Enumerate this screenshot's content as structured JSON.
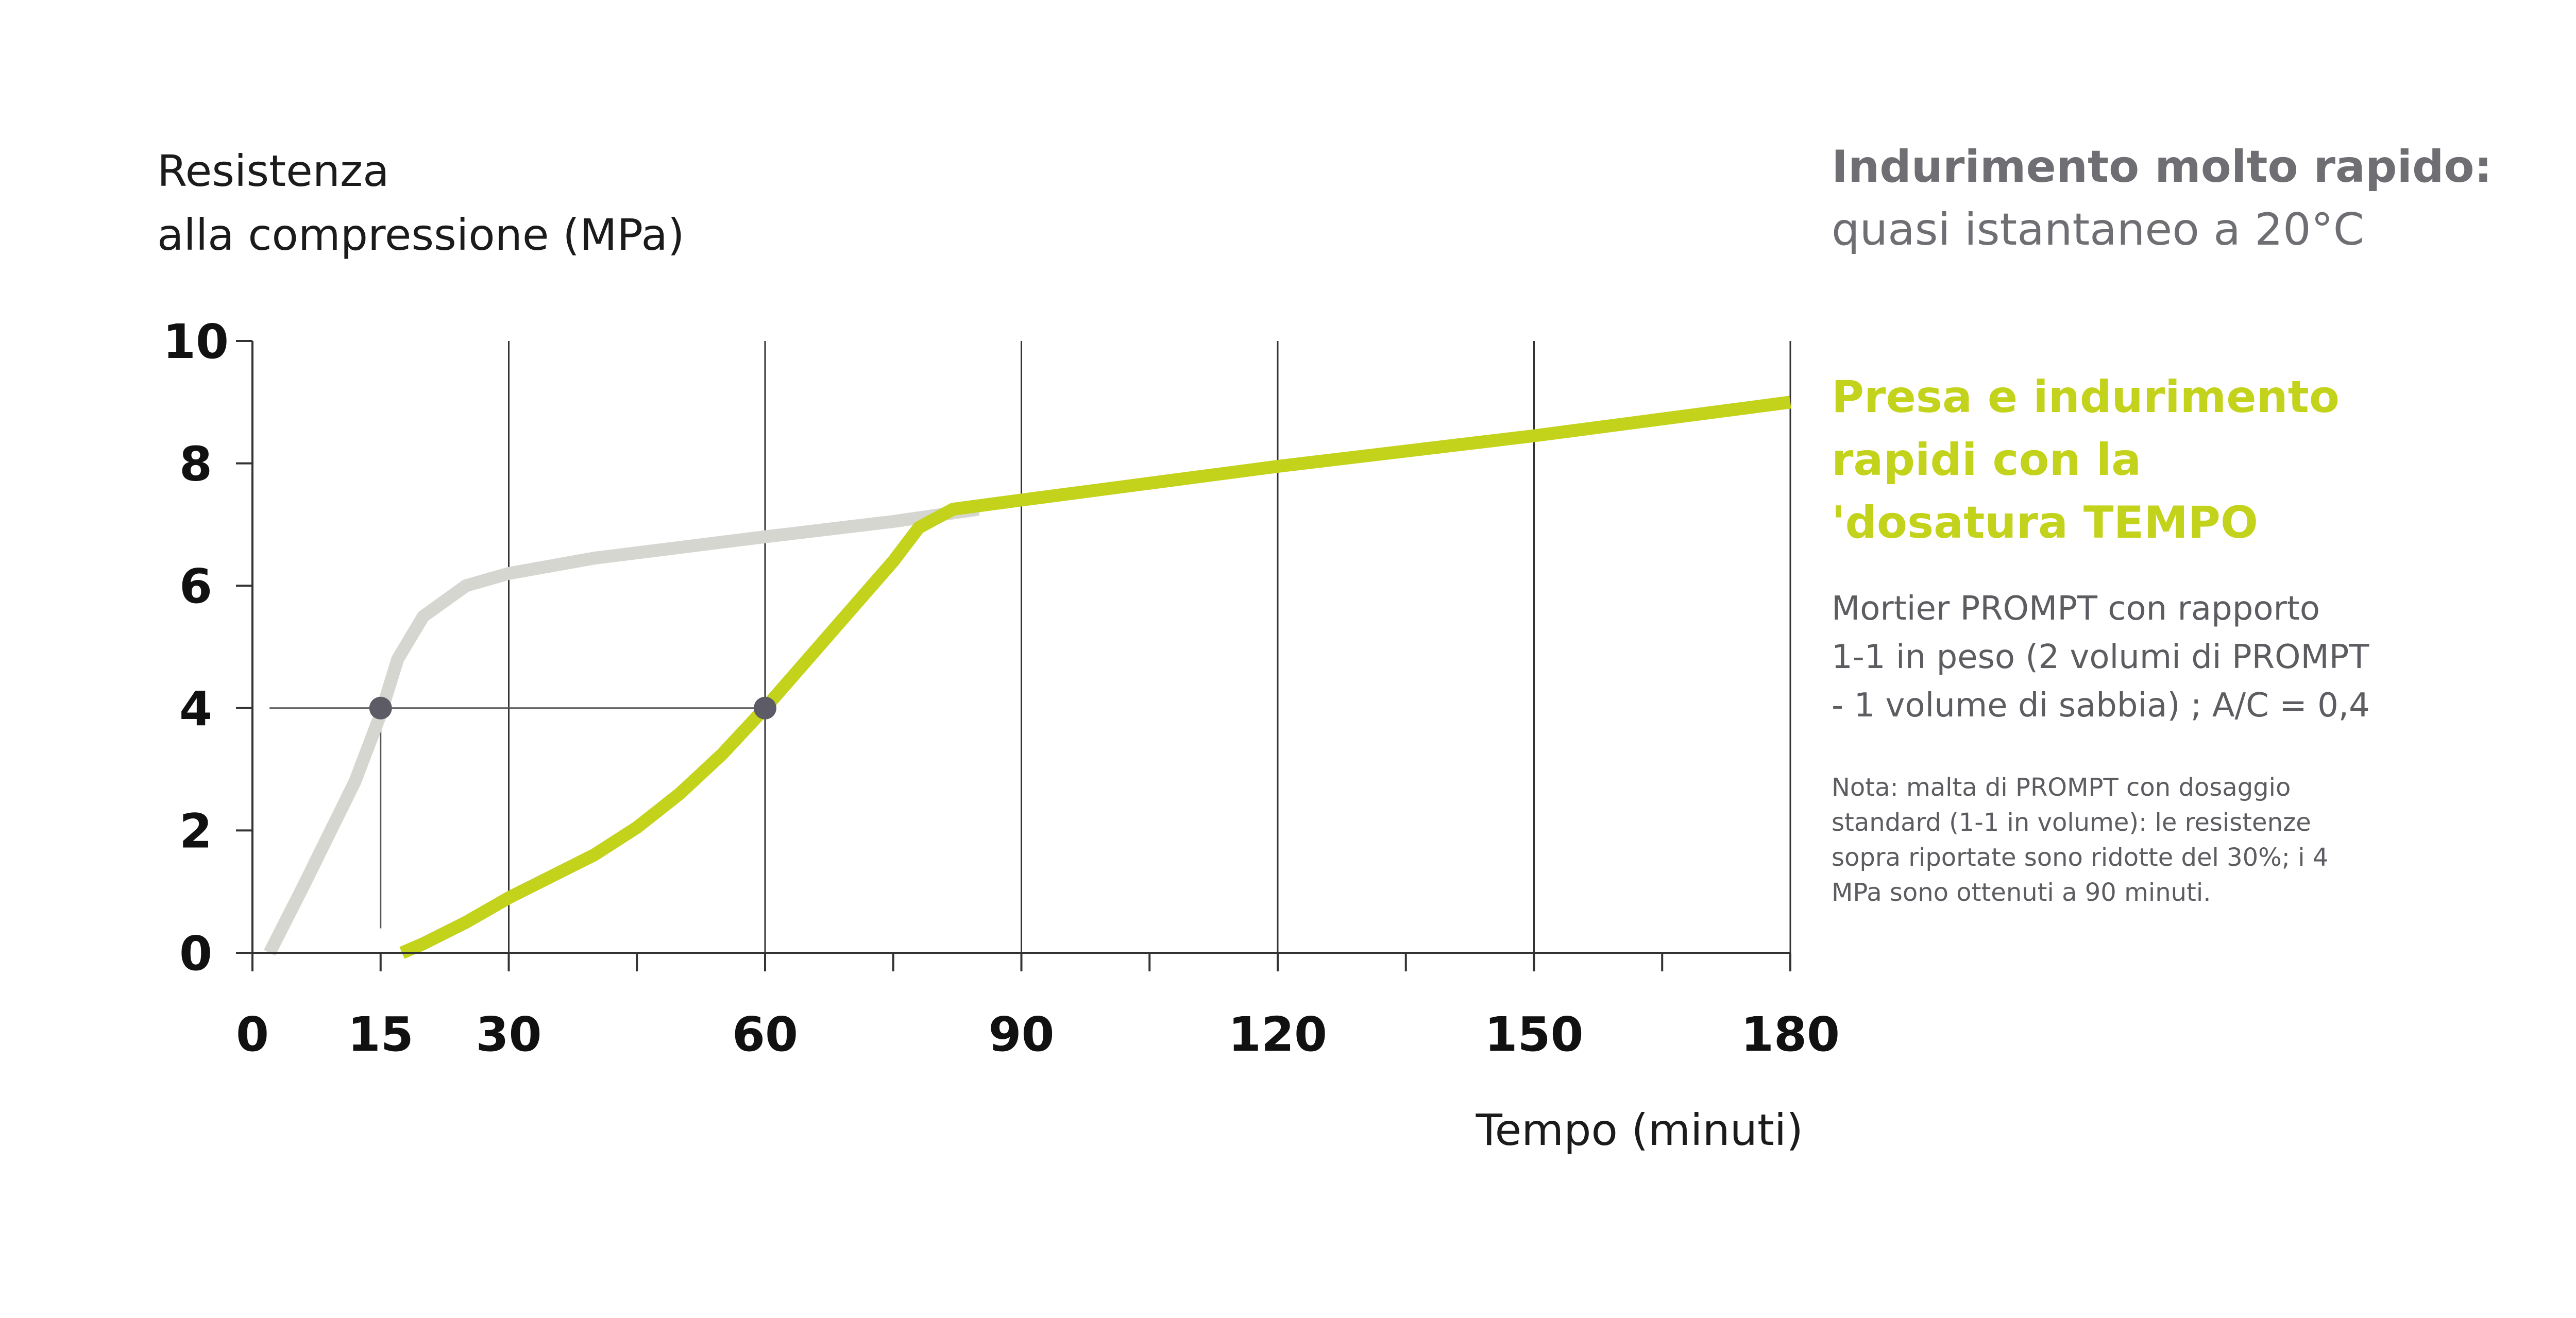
{
  "texts": {
    "header_bold": "Indurimento molto rapido:",
    "header_sub": "quasi istantaneo a 20°C",
    "green_title": "Presa e indurimento\nrapidi con la\n'dosatura TEMPO",
    "description": "Mortier PROMPT con rapporto\n1-1 in peso (2 volumi di PROMPT\n- 1 volume di sabbia) ; A/C = 0,4",
    "note": "Nota: malta di PROMPT con dosaggio\nstandard (1-1 in volume): le resistenze\nsopra riportate sono ridotte del 30%; i 4\nMPa sono ottenuti a 90 minuti."
  },
  "chart_data": {
    "type": "line",
    "ylabel": "Resistenza\nalla compressione (MPa)",
    "xlabel": "Tempo (minuti)",
    "xlim": [
      0,
      180
    ],
    "ylim": [
      0,
      10
    ],
    "x_ticks": [
      0,
      15,
      30,
      60,
      90,
      120,
      150,
      180
    ],
    "x_minor_ticks": [
      45,
      75,
      105,
      135,
      165
    ],
    "y_ticks": [
      0,
      2,
      4,
      6,
      8,
      10
    ],
    "vertical_gridlines": [
      30,
      60,
      90,
      120,
      150,
      180
    ],
    "highlight_tick": 15,
    "series": [
      {
        "color": "#d6d6d1",
        "points": [
          [
            2,
            0
          ],
          [
            6,
            1.1
          ],
          [
            12,
            2.8
          ],
          [
            15,
            3.9
          ],
          [
            17,
            4.8
          ],
          [
            20,
            5.5
          ],
          [
            25,
            6.0
          ],
          [
            30,
            6.2
          ],
          [
            40,
            6.45
          ],
          [
            60,
            6.8
          ],
          [
            75,
            7.05
          ],
          [
            85,
            7.25
          ]
        ]
      },
      {
        "color": "#c3d21a",
        "points": [
          [
            17.5,
            0
          ],
          [
            20,
            0.15
          ],
          [
            25,
            0.5
          ],
          [
            30,
            0.9
          ],
          [
            40,
            1.6
          ],
          [
            45,
            2.05
          ],
          [
            50,
            2.6
          ],
          [
            55,
            3.25
          ],
          [
            60,
            4.0
          ],
          [
            65,
            4.8
          ],
          [
            70,
            5.6
          ],
          [
            75,
            6.4
          ],
          [
            78,
            6.95
          ],
          [
            82,
            7.25
          ],
          [
            90,
            7.4
          ],
          [
            120,
            7.95
          ],
          [
            150,
            8.45
          ],
          [
            180,
            9.0
          ]
        ]
      }
    ],
    "markers": [
      [
        15,
        4
      ],
      [
        60,
        4
      ]
    ],
    "reference_lines": [
      {
        "from": [
          2,
          4
        ],
        "to": [
          60,
          4
        ]
      },
      {
        "from": [
          15,
          0.4
        ],
        "to": [
          15,
          4
        ]
      }
    ]
  }
}
